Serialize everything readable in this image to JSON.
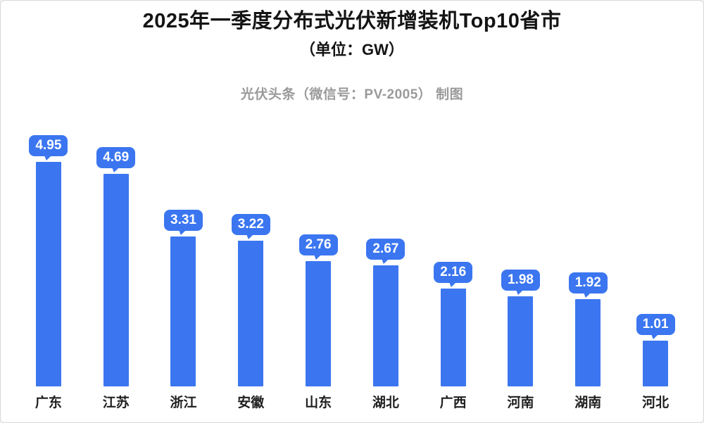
{
  "page": {
    "title_line1": "2025年一季度分布式光伏新增装机Top10省市",
    "title_line2": "（单位：GW）",
    "subtitle": "光伏头条（微信号：PV-2005） 制图"
  },
  "colors": {
    "bar": "#3b76f0",
    "bubble_text": "#ffffff",
    "title": "#141414",
    "subtitle": "#9a9a9a",
    "category_label": "#1f1f1f",
    "background": "#ffffff",
    "border": "#d8d8d8"
  },
  "chart_data": {
    "type": "bar",
    "title": "2025年一季度分布式光伏新增装机Top10省市",
    "subtitle": "光伏头条（微信号：PV-2005） 制图",
    "unit": "GW",
    "categories": [
      "广东",
      "江苏",
      "浙江",
      "安徽",
      "山东",
      "湖北",
      "广西",
      "河南",
      "湖南",
      "河北"
    ],
    "values": [
      4.95,
      4.69,
      3.31,
      3.22,
      2.76,
      2.67,
      2.16,
      1.98,
      1.92,
      1.01
    ],
    "value_labels": [
      "4.95",
      "4.69",
      "3.31",
      "3.22",
      "2.76",
      "2.67",
      "2.16",
      "1.98",
      "1.92",
      "1.01"
    ],
    "xlabel": "",
    "ylabel": "",
    "ylim": [
      0,
      5
    ],
    "grid": false,
    "legend": false,
    "axes_visible": false,
    "data_label_style": "speech-bubble",
    "bar_color": "#3b76f0"
  }
}
